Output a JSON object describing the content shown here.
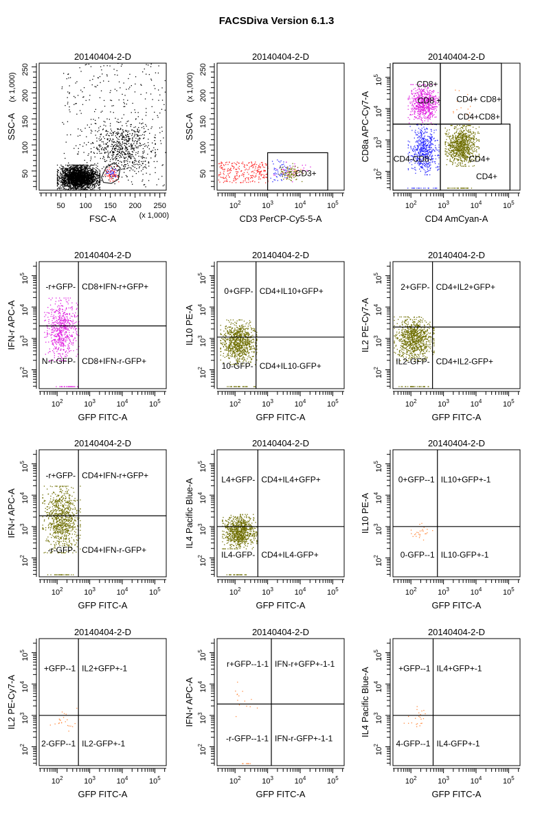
{
  "page": {
    "title": "FACSDiva Version 6.1.3"
  },
  "colors": {
    "black": "#000000",
    "red": "#ff2a2a",
    "blue": "#2a2aff",
    "magenta": "#e020e0",
    "olive": "#6e6e00",
    "orange": "#ff8a40"
  },
  "chart_data": [
    {
      "type": "scatter",
      "title": "20140404-2-D",
      "xlabel": "FSC-A",
      "ylabel": "SSC-A",
      "x_scale": "linear",
      "y_scale": "linear",
      "x_multiplier_label": "(x 1,000)",
      "y_multiplier_label": "(x 1,000)",
      "xlim": [
        6,
        263
      ],
      "ylim": [
        13,
        257
      ],
      "xticks": [
        50,
        100,
        150,
        200,
        250
      ],
      "yticks": [
        50,
        100,
        150,
        200,
        250
      ],
      "gates": [
        {
          "type": "polygon",
          "points": [
            [
              132,
              38
            ],
            [
              142,
              58
            ],
            [
              158,
              66
            ],
            [
              170,
              56
            ],
            [
              166,
              34
            ],
            [
              152,
              26
            ],
            [
              136,
              28
            ]
          ]
        }
      ],
      "gate_labels": [],
      "populations": [
        {
          "color": "black",
          "count": 2600,
          "x": [
            42,
            128
          ],
          "y": [
            14,
            62
          ]
        },
        {
          "color": "black",
          "count": 600,
          "x": [
            110,
            240
          ],
          "y": [
            40,
            150
          ]
        },
        {
          "color": "black",
          "count": 350,
          "x": [
            50,
            262
          ],
          "y": [
            20,
            260
          ],
          "uniform": true
        },
        {
          "color": "red",
          "count": 70,
          "x": [
            138,
            166
          ],
          "y": [
            30,
            60
          ]
        },
        {
          "color": "blue",
          "count": 25,
          "x": [
            138,
            166
          ],
          "y": [
            30,
            60
          ]
        }
      ]
    },
    {
      "type": "scatter",
      "title": "20140404-2-D",
      "xlabel": "CD3 PerCP-Cy5-5-A",
      "ylabel": "SSC-A",
      "x_scale": "log",
      "y_scale": "linear",
      "y_multiplier_label": "(x 1,000)",
      "xlim": [
        28,
        224000
      ],
      "ylim": [
        13,
        257
      ],
      "xticks": [
        100,
        1000,
        10000,
        100000
      ],
      "yticks": [
        50,
        100,
        150,
        200,
        250
      ],
      "gates": [
        {
          "type": "rect",
          "x": [
            1000,
            70000
          ],
          "y": [
            10,
            85
          ]
        }
      ],
      "gate_labels": [
        {
          "text": "CD3+",
          "x": 7000,
          "y": 45
        }
      ],
      "populations": [
        {
          "color": "red",
          "count": 260,
          "x": [
            30,
            1000
          ],
          "y": [
            28,
            68
          ],
          "uniform": true
        },
        {
          "color": "blue",
          "count": 60,
          "x": [
            1000,
            5000
          ],
          "y": [
            28,
            72
          ]
        },
        {
          "color": "magenta",
          "count": 40,
          "x": [
            1500,
            20000
          ],
          "y": [
            30,
            70
          ]
        },
        {
          "color": "olive",
          "count": 90,
          "x": [
            2000,
            12000
          ],
          "y": [
            30,
            65
          ]
        },
        {
          "color": "orange",
          "count": 10,
          "x": [
            3000,
            15000
          ],
          "y": [
            35,
            60
          ]
        }
      ]
    },
    {
      "type": "scatter",
      "title": "20140404-2-D",
      "xlabel": "CD4 AmCyan-A",
      "ylabel": "CD8a APC-Cy7-A",
      "x_scale": "log",
      "y_scale": "log",
      "xlim": [
        28,
        224000
      ],
      "ylim": [
        25,
        280000
      ],
      "xticks": [
        100,
        1000,
        10000,
        100000
      ],
      "yticks": [
        100,
        1000,
        10000,
        100000
      ],
      "gates": [
        {
          "type": "rect",
          "x": [
            28,
            800
          ],
          "y": [
            3200,
            280000
          ]
        },
        {
          "type": "rect",
          "x": [
            800,
            60000
          ],
          "y": [
            3200,
            280000
          ]
        },
        {
          "type": "rect",
          "x": [
            28,
            800
          ],
          "y": [
            25,
            3200
          ]
        },
        {
          "type": "rect",
          "x": [
            800,
            110000
          ],
          "y": [
            25,
            3200
          ]
        }
      ],
      "gate_labels": [
        {
          "text": "CD8+",
          "x": 150,
          "y": 60000
        },
        {
          "text": "CD8 +",
          "x": 160,
          "y": 18000
        },
        {
          "text": "CD4+ CD8+",
          "x": 2500,
          "y": 20000
        },
        {
          "text": "CD4+CD8+",
          "x": 2700,
          "y": 11000
        },
        {
          "text": "CD4-CD8-",
          "x": 29,
          "y": 250
        },
        {
          "text": "CD4+",
          "x": 6000,
          "y": 250
        },
        {
          "text": "CD4+",
          "x": 10000,
          "y": 280
        }
      ],
      "populations": [
        {
          "color": "magenta",
          "count": 650,
          "x": [
            80,
            700
          ],
          "y": [
            3200,
            60000
          ]
        },
        {
          "color": "blue",
          "count": 550,
          "x": [
            80,
            700
          ],
          "y": [
            80,
            3200
          ]
        },
        {
          "color": "olive",
          "count": 900,
          "x": [
            1100,
            12000
          ],
          "y": [
            150,
            3000
          ]
        },
        {
          "color": "orange",
          "count": 15,
          "x": [
            1000,
            10000
          ],
          "y": [
            3300,
            40000
          ]
        },
        {
          "color": "blue",
          "count": 20,
          "x": [
            60,
            600
          ],
          "y": [
            30,
            30
          ]
        },
        {
          "color": "olive",
          "count": 30,
          "x": [
            1100,
            8000
          ],
          "y": [
            30,
            30
          ]
        }
      ]
    },
    {
      "type": "scatter",
      "title": "20140404-2-D",
      "xlabel": "GFP FITC-A",
      "ylabel": "IFN-r APC-A",
      "x_scale": "log",
      "y_scale": "log",
      "xlim": [
        28,
        224000
      ],
      "ylim": [
        25,
        280000
      ],
      "xticks": [
        100,
        1000,
        10000,
        100000
      ],
      "yticks": [
        100,
        1000,
        10000,
        100000
      ],
      "gates": [
        {
          "type": "quadrant",
          "x": 450,
          "y": 2500
        }
      ],
      "gate_labels": [
        {
          "quadrant": "UL",
          "text": "-r+GFP-"
        },
        {
          "quadrant": "UR",
          "text": "CD8+IFN-r+GFP+"
        },
        {
          "quadrant": "LL",
          "text": "N-r-GFP-"
        },
        {
          "quadrant": "LR",
          "text": "CD8+IFN-r-GFP+"
        }
      ],
      "populations": [
        {
          "color": "magenta",
          "count": 600,
          "x": [
            40,
            450
          ],
          "y": [
            200,
            20000
          ]
        },
        {
          "color": "magenta",
          "count": 25,
          "x": [
            80,
            450
          ],
          "y": [
            30,
            30
          ]
        }
      ]
    },
    {
      "type": "scatter",
      "title": "20140404-2-D",
      "xlabel": "GFP FITC-A",
      "ylabel": "IL10 PE-A",
      "x_scale": "log",
      "y_scale": "log",
      "xlim": [
        28,
        224000
      ],
      "ylim": [
        25,
        280000
      ],
      "xticks": [
        100,
        1000,
        10000,
        100000
      ],
      "yticks": [
        100,
        1000,
        10000,
        100000
      ],
      "gates": [
        {
          "type": "quadrant",
          "x": 440,
          "y": 1100
        }
      ],
      "gate_labels": [
        {
          "quadrant": "UL",
          "text": "0+GFP-"
        },
        {
          "quadrant": "UR",
          "text": "CD4+IL10+GFP+"
        },
        {
          "quadrant": "LL",
          "text": "10-GFP-"
        },
        {
          "quadrant": "LR",
          "text": "CD4+IL10-GFP+"
        }
      ],
      "populations": [
        {
          "color": "olive",
          "count": 900,
          "x": [
            35,
            450
          ],
          "y": [
            150,
            4000
          ]
        },
        {
          "color": "olive",
          "count": 30,
          "x": [
            50,
            400
          ],
          "y": [
            30,
            30
          ]
        }
      ]
    },
    {
      "type": "scatter",
      "title": "20140404-2-D",
      "xlabel": "GFP FITC-A",
      "ylabel": "IL2 PE-Cy7-A",
      "x_scale": "log",
      "y_scale": "log",
      "xlim": [
        28,
        224000
      ],
      "ylim": [
        25,
        280000
      ],
      "xticks": [
        100,
        1000,
        10000,
        100000
      ],
      "yticks": [
        100,
        1000,
        10000,
        100000
      ],
      "gates": [
        {
          "type": "quadrant",
          "x": 460,
          "y": 2300
        }
      ],
      "gate_labels": [
        {
          "quadrant": "UL",
          "text": "2+GFP-"
        },
        {
          "quadrant": "UR",
          "text": "CD4+IL2+GFP+"
        },
        {
          "quadrant": "LL",
          "text": "IL2-GFP-"
        },
        {
          "quadrant": "LR",
          "text": "CD4+IL2-GFP+"
        }
      ],
      "populations": [
        {
          "color": "olive",
          "count": 900,
          "x": [
            30,
            500
          ],
          "y": [
            200,
            5000
          ]
        },
        {
          "color": "olive",
          "count": 30,
          "x": [
            40,
            400
          ],
          "y": [
            30,
            30
          ]
        }
      ]
    },
    {
      "type": "scatter",
      "title": "20140404-2-D",
      "xlabel": "GFP FITC-A",
      "ylabel": "IFN-r APC-A",
      "x_scale": "log",
      "y_scale": "log",
      "xlim": [
        28,
        224000
      ],
      "ylim": [
        25,
        280000
      ],
      "xticks": [
        100,
        1000,
        10000,
        100000
      ],
      "yticks": [
        100,
        1000,
        10000,
        100000
      ],
      "gates": [
        {
          "type": "quadrant",
          "x": 450,
          "y": 2200
        }
      ],
      "gate_labels": [
        {
          "quadrant": "UL",
          "text": "-r+GFP-"
        },
        {
          "quadrant": "UR",
          "text": "CD4+IFN-r+GFP+"
        },
        {
          "quadrant": "LL",
          "text": "-r-GFP-"
        },
        {
          "quadrant": "LR",
          "text": "CD4+IFN-r-GFP+"
        }
      ],
      "populations": [
        {
          "color": "olive",
          "count": 850,
          "x": [
            35,
            500
          ],
          "y": [
            150,
            20000
          ]
        },
        {
          "color": "olive",
          "count": 25,
          "x": [
            50,
            350
          ],
          "y": [
            30,
            30
          ]
        }
      ]
    },
    {
      "type": "scatter",
      "title": "20140404-2-D",
      "xlabel": "GFP FITC-A",
      "ylabel": "IL4 Pacific Blue-A",
      "x_scale": "log",
      "y_scale": "log",
      "xlim": [
        28,
        224000
      ],
      "ylim": [
        25,
        280000
      ],
      "xticks": [
        100,
        1000,
        10000,
        100000
      ],
      "yticks": [
        100,
        1000,
        10000,
        100000
      ],
      "gates": [
        {
          "type": "quadrant",
          "x": 500,
          "y": 1000
        }
      ],
      "gate_labels": [
        {
          "quadrant": "UL",
          "text": "L4+GFP-"
        },
        {
          "quadrant": "UR",
          "text": "CD4+IL4+GFP+"
        },
        {
          "quadrant": "LL",
          "text": "IL4-GFP-"
        },
        {
          "quadrant": "LR",
          "text": "CD4+IL4-GFP+"
        }
      ],
      "populations": [
        {
          "color": "olive",
          "count": 850,
          "x": [
            40,
            450
          ],
          "y": [
            200,
            2500
          ]
        },
        {
          "color": "olive",
          "count": 25,
          "x": [
            50,
            350
          ],
          "y": [
            30,
            30
          ]
        }
      ]
    },
    {
      "type": "scatter",
      "title": "20140404-2-D",
      "xlabel": "GFP FITC-A",
      "ylabel": "IL10 PE-A",
      "x_scale": "log",
      "y_scale": "log",
      "xlim": [
        28,
        224000
      ],
      "ylim": [
        25,
        280000
      ],
      "xticks": [
        100,
        1000,
        10000,
        100000
      ],
      "yticks": [
        100,
        1000,
        10000,
        100000
      ],
      "gates": [
        {
          "type": "quadrant",
          "x": 650,
          "y": 1000
        }
      ],
      "gate_labels": [
        {
          "quadrant": "UL",
          "text": "0+GFP--1"
        },
        {
          "quadrant": "UR",
          "text": "IL10+GFP+-1"
        },
        {
          "quadrant": "LL",
          "text": "0-GFP--1"
        },
        {
          "quadrant": "LR",
          "text": "IL10-GFP+-1"
        }
      ],
      "populations": [
        {
          "color": "orange",
          "count": 25,
          "x": [
            80,
            450
          ],
          "y": [
            350,
            1300
          ]
        }
      ]
    },
    {
      "type": "scatter",
      "title": "20140404-2-D",
      "xlabel": "GFP FITC-A",
      "ylabel": "IL2 PE-Cy7-A",
      "x_scale": "log",
      "y_scale": "log",
      "xlim": [
        28,
        224000
      ],
      "ylim": [
        25,
        280000
      ],
      "xticks": [
        100,
        1000,
        10000,
        100000
      ],
      "yticks": [
        100,
        1000,
        10000,
        100000
      ],
      "gates": [
        {
          "type": "quadrant",
          "x": 450,
          "y": 1000
        }
      ],
      "gate_labels": [
        {
          "quadrant": "UL",
          "text": "+GFP--1"
        },
        {
          "quadrant": "UR",
          "text": "IL2+GFP+-1"
        },
        {
          "quadrant": "LL",
          "text": "2-GFP--1"
        },
        {
          "quadrant": "LR",
          "text": "IL2-GFP+-1"
        }
      ],
      "populations": [
        {
          "color": "orange",
          "count": 22,
          "x": [
            60,
            450
          ],
          "y": [
            300,
            2000
          ]
        }
      ]
    },
    {
      "type": "scatter",
      "title": "20140404-2-D",
      "xlabel": "GFP FITC-A",
      "ylabel": "IFN-r APC-A",
      "x_scale": "log",
      "y_scale": "log",
      "xlim": [
        28,
        224000
      ],
      "ylim": [
        25,
        280000
      ],
      "xticks": [
        100,
        1000,
        10000,
        100000
      ],
      "yticks": [
        100,
        1000,
        10000,
        100000
      ],
      "gates": [
        {
          "type": "quadrant",
          "x": 1300,
          "y": 2300
        }
      ],
      "gate_labels": [
        {
          "quadrant": "UL",
          "text": "r+GFP--1-1"
        },
        {
          "quadrant": "UR",
          "text": "IFN-r+GFP+-1-1"
        },
        {
          "quadrant": "LL",
          "text": "-r-GFP--1-1"
        },
        {
          "quadrant": "LR",
          "text": "IFN-r-GFP+-1-1"
        }
      ],
      "populations": [
        {
          "color": "orange",
          "count": 14,
          "x": [
            60,
            700
          ],
          "y": [
            700,
            20000
          ]
        },
        {
          "color": "orange",
          "count": 7,
          "x": [
            100,
            350
          ],
          "y": [
            30,
            30
          ]
        }
      ]
    },
    {
      "type": "scatter",
      "title": "20140404-2-D",
      "xlabel": "GFP FITC-A",
      "ylabel": "IL4 Pacific Blue-A",
      "x_scale": "log",
      "y_scale": "log",
      "xlim": [
        28,
        224000
      ],
      "ylim": [
        25,
        280000
      ],
      "xticks": [
        100,
        1000,
        10000,
        100000
      ],
      "yticks": [
        100,
        1000,
        10000,
        100000
      ],
      "gates": [
        {
          "type": "quadrant",
          "x": 480,
          "y": 1000
        }
      ],
      "gate_labels": [
        {
          "quadrant": "UL",
          "text": "+GFP--1"
        },
        {
          "quadrant": "UR",
          "text": "IL4+GFP+-1"
        },
        {
          "quadrant": "LL",
          "text": "4-GFP--1"
        },
        {
          "quadrant": "LR",
          "text": "IL4-GFP+-1"
        }
      ],
      "populations": [
        {
          "color": "orange",
          "count": 22,
          "x": [
            60,
            500
          ],
          "y": [
            350,
            2000
          ]
        }
      ]
    }
  ]
}
